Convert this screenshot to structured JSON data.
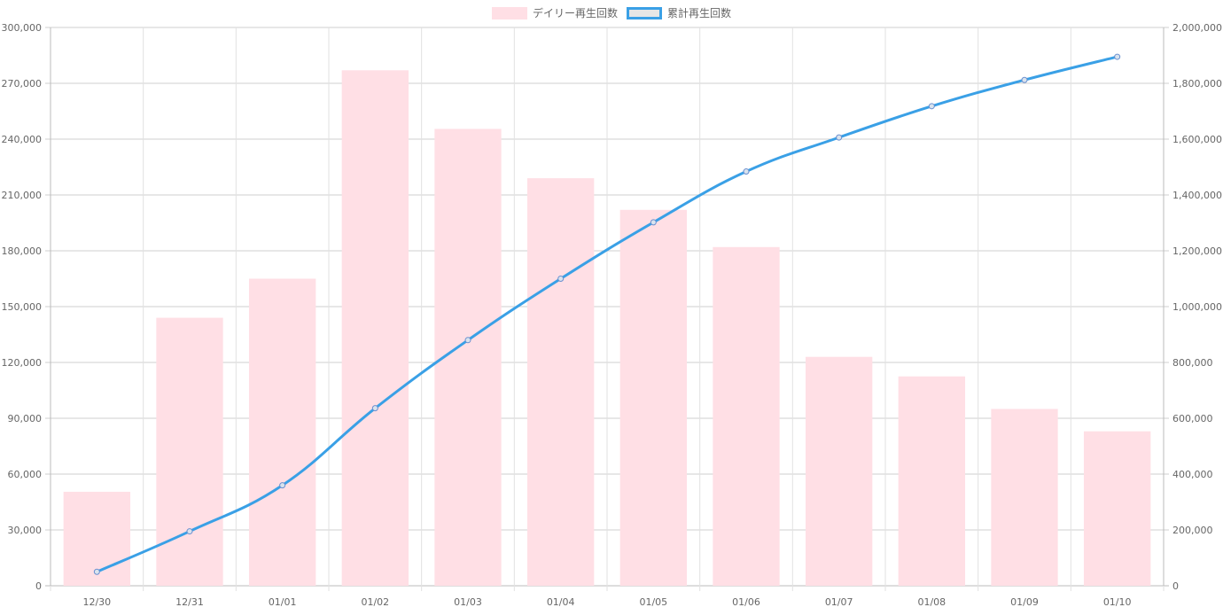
{
  "chart_data": {
    "type": "bar",
    "categories": [
      "12/30",
      "12/31",
      "01/01",
      "01/02",
      "01/03",
      "01/04",
      "01/05",
      "01/06",
      "01/07",
      "01/08",
      "01/09",
      "01/10"
    ],
    "series": [
      {
        "name": "デイリー再生回数",
        "type": "bar",
        "axis": "left",
        "color": "#ffdfe5",
        "values": [
          50500,
          144000,
          165000,
          277000,
          245500,
          219000,
          202000,
          182000,
          123000,
          112500,
          95000,
          83000
        ]
      },
      {
        "name": "累計再生回数",
        "type": "line",
        "axis": "right",
        "color": "#3aa0e6",
        "values": [
          50000,
          195000,
          360000,
          636000,
          880000,
          1100000,
          1302000,
          1484000,
          1606000,
          1718000,
          1812000,
          1895000
        ]
      }
    ],
    "y_left": {
      "ylim": [
        0,
        300000
      ],
      "ticks": [
        "0",
        "30,000",
        "60,000",
        "90,000",
        "120,000",
        "150,000",
        "180,000",
        "210,000",
        "240,000",
        "270,000",
        "300,000"
      ]
    },
    "y_right": {
      "ylim": [
        0,
        2000000
      ],
      "ticks": [
        "0",
        "200,000",
        "400,000",
        "600,000",
        "800,000",
        "1,000,000",
        "1,200,000",
        "1,400,000",
        "1,600,000",
        "1,800,000",
        "2,000,000"
      ]
    },
    "legend": "top-center",
    "grid": true
  }
}
